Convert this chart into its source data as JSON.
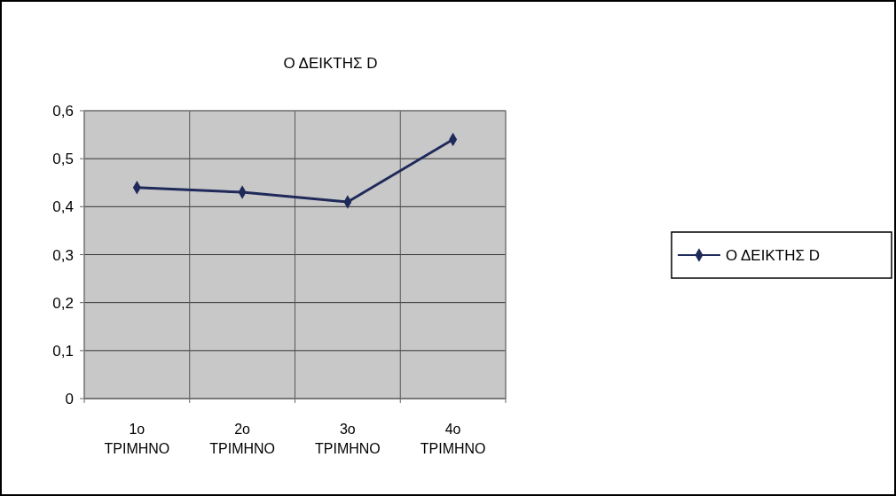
{
  "chart_data": {
    "type": "line",
    "title": "Ο ΔΕΙΚΤΗΣ D",
    "categories": [
      "1ο ΤΡΙΜΗΝΟ",
      "2ο ΤΡΙΜΗΝΟ",
      "3ο ΤΡΙΜΗΝΟ",
      "4ο ΤΡΙΜΗΝΟ"
    ],
    "series": [
      {
        "name": "Ο ΔΕΙΚΤΗΣ D",
        "color": "#1f2a5a",
        "values": [
          0.44,
          0.43,
          0.41,
          0.54
        ]
      }
    ],
    "ylim": [
      0,
      0.6
    ],
    "yticks": [
      {
        "value": 0,
        "label": "0"
      },
      {
        "value": 0.1,
        "label": "0,1"
      },
      {
        "value": 0.2,
        "label": "0,2"
      },
      {
        "value": 0.3,
        "label": "0,3"
      },
      {
        "value": 0.4,
        "label": "0,4"
      },
      {
        "value": 0.5,
        "label": "0,5"
      },
      {
        "value": 0.6,
        "label": "0,6"
      }
    ],
    "grid": true,
    "legend": "right",
    "marker": "diamond",
    "line_style": "solid"
  }
}
